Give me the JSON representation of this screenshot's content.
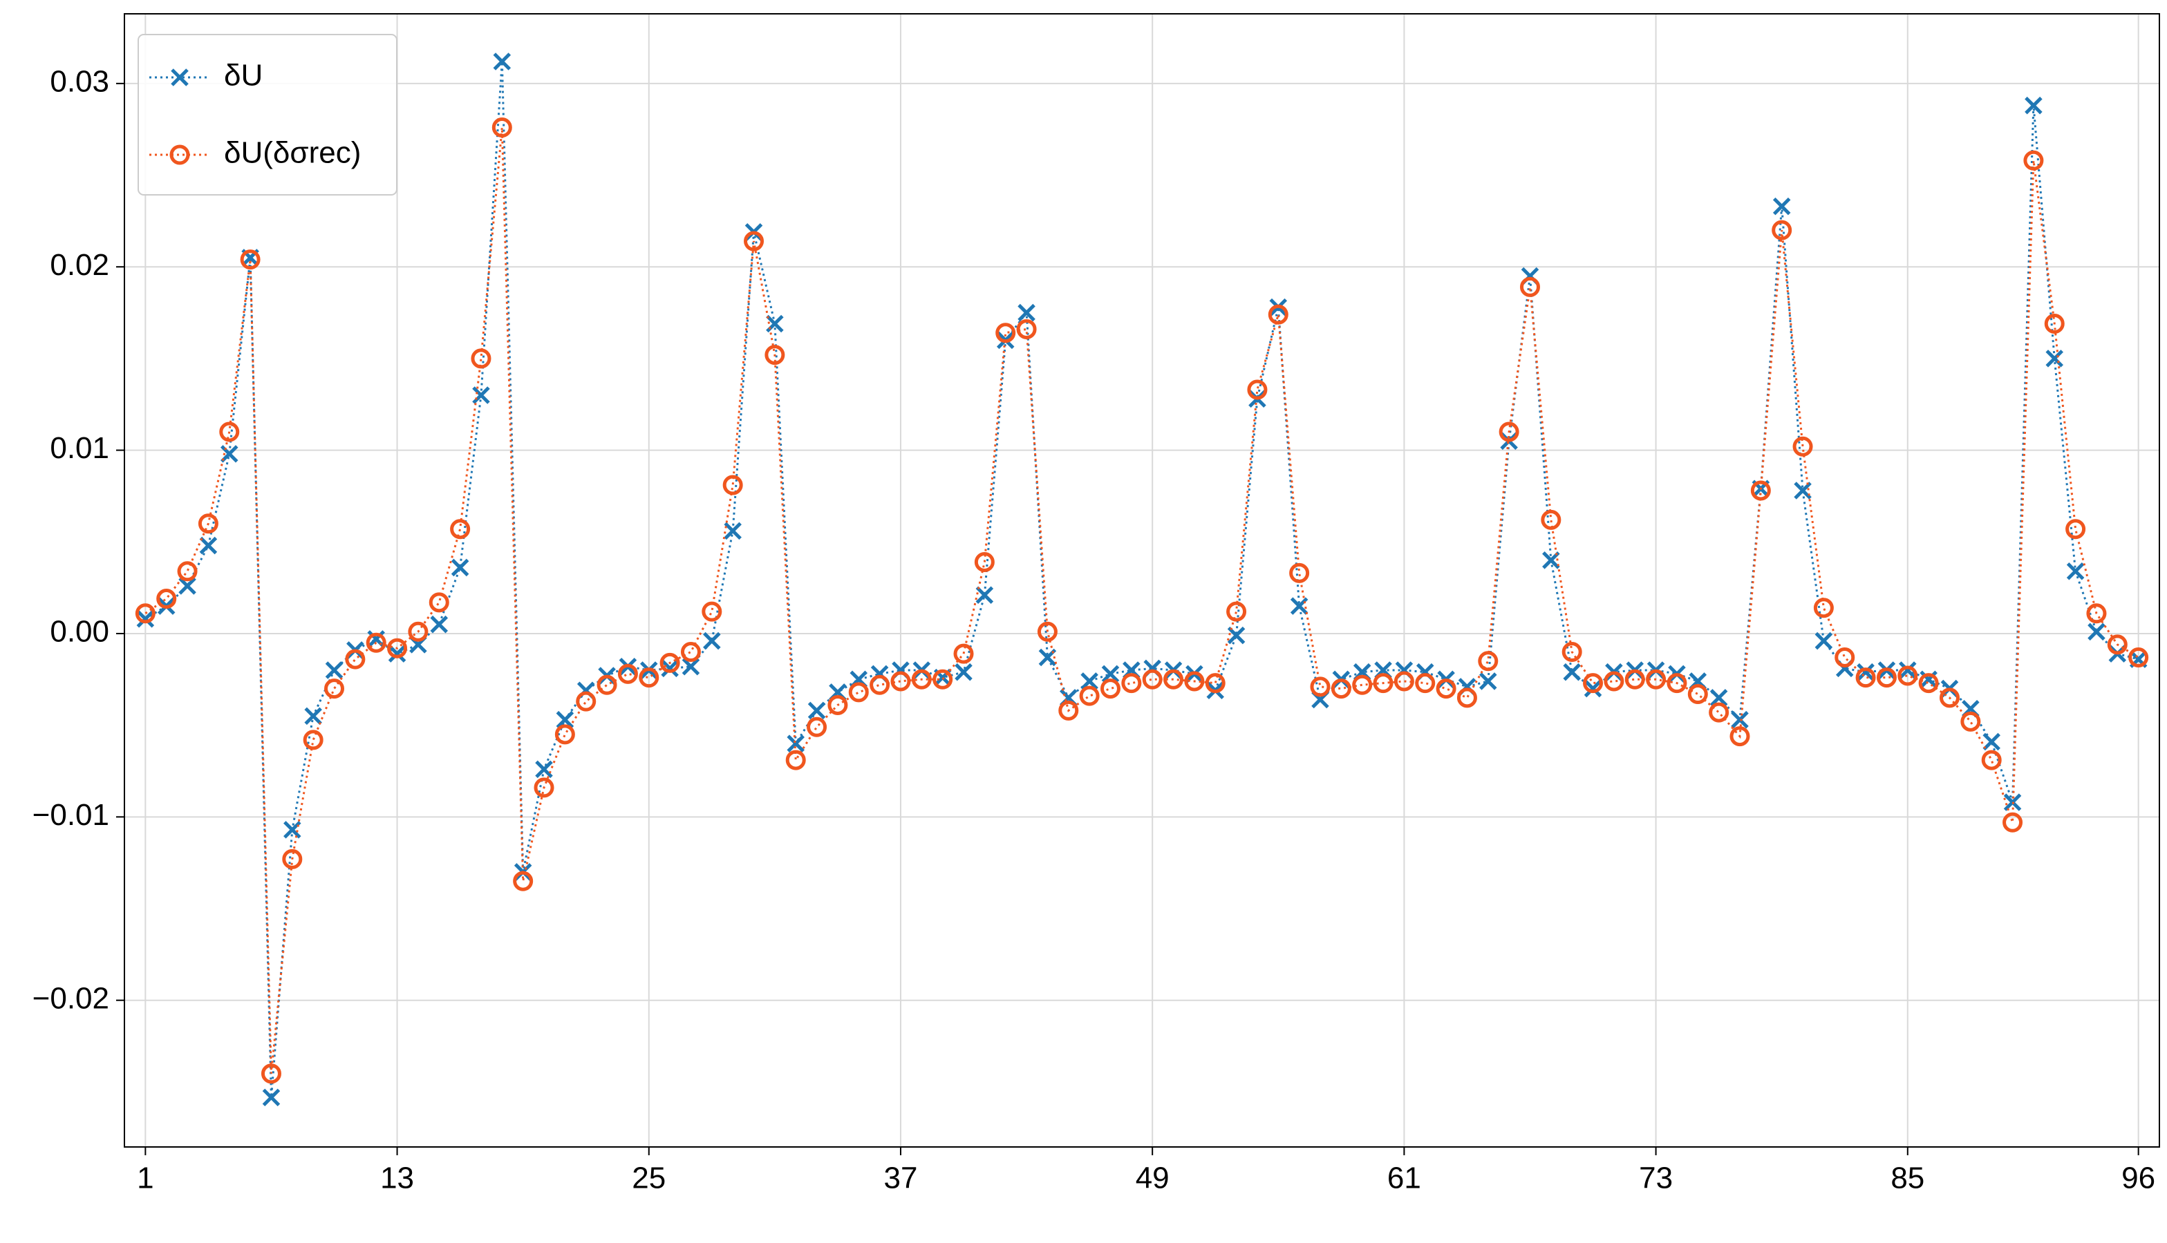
{
  "chart_data": {
    "type": "line",
    "x": [
      1,
      2,
      3,
      4,
      5,
      6,
      7,
      8,
      9,
      10,
      11,
      12,
      13,
      14,
      15,
      16,
      17,
      18,
      19,
      20,
      21,
      22,
      23,
      24,
      25,
      26,
      27,
      28,
      29,
      30,
      31,
      32,
      33,
      34,
      35,
      36,
      37,
      38,
      39,
      40,
      41,
      42,
      43,
      44,
      45,
      46,
      47,
      48,
      49,
      50,
      51,
      52,
      53,
      54,
      55,
      56,
      57,
      58,
      59,
      60,
      61,
      62,
      63,
      64,
      65,
      66,
      67,
      68,
      69,
      70,
      71,
      72,
      73,
      74,
      75,
      76,
      77,
      78,
      79,
      80,
      81,
      82,
      83,
      84,
      85,
      86,
      87,
      88,
      89,
      90,
      91,
      92,
      93,
      94,
      95,
      96
    ],
    "series": [
      {
        "name": "δU",
        "color": "#1f77b4",
        "marker": "x",
        "values": [
          0.0008,
          0.0015,
          0.0026,
          0.0048,
          0.0098,
          0.0205,
          -0.0253,
          -0.0107,
          -0.0045,
          -0.002,
          -0.0009,
          -0.0003,
          -0.0011,
          -0.0006,
          0.0005,
          0.0036,
          0.013,
          0.0312,
          -0.013,
          -0.0074,
          -0.0047,
          -0.0031,
          -0.0023,
          -0.0018,
          -0.002,
          -0.0019,
          -0.0018,
          -0.0004,
          0.0056,
          0.0219,
          0.0169,
          -0.006,
          -0.0042,
          -0.0032,
          -0.0025,
          -0.0022,
          -0.002,
          -0.002,
          -0.0024,
          -0.0021,
          0.0021,
          0.016,
          0.0175,
          -0.0013,
          -0.0035,
          -0.0026,
          -0.0022,
          -0.002,
          -0.0019,
          -0.002,
          -0.0022,
          -0.0031,
          -0.0001,
          0.0128,
          0.0178,
          0.0015,
          -0.0036,
          -0.0025,
          -0.0021,
          -0.002,
          -0.002,
          -0.0021,
          -0.0025,
          -0.0029,
          -0.0026,
          0.0105,
          0.0195,
          0.004,
          -0.0021,
          -0.003,
          -0.0021,
          -0.002,
          -0.002,
          -0.0022,
          -0.0026,
          -0.0035,
          -0.0047,
          0.0079,
          0.0233,
          0.0078,
          -0.0004,
          -0.0019,
          -0.0021,
          -0.002,
          -0.002,
          -0.0025,
          -0.003,
          -0.0041,
          -0.0059,
          -0.0092,
          0.0288,
          0.015,
          0.0034,
          0.0001,
          -0.0011,
          -0.0014
        ]
      },
      {
        "name": "δU(δσrec)",
        "color": "#f0561e",
        "marker": "o",
        "values": [
          0.0011,
          0.0019,
          0.0034,
          0.006,
          0.011,
          0.0204,
          -0.024,
          -0.0123,
          -0.0058,
          -0.003,
          -0.0014,
          -0.0005,
          -0.0008,
          0.0001,
          0.0017,
          0.0057,
          0.015,
          0.0276,
          -0.0135,
          -0.0084,
          -0.0055,
          -0.0037,
          -0.0028,
          -0.0022,
          -0.0024,
          -0.0016,
          -0.001,
          0.0012,
          0.0081,
          0.0214,
          0.0152,
          -0.0069,
          -0.0051,
          -0.0039,
          -0.0032,
          -0.0028,
          -0.0026,
          -0.0025,
          -0.0025,
          -0.0011,
          0.0039,
          0.0164,
          0.0166,
          0.0001,
          -0.0042,
          -0.0034,
          -0.003,
          -0.0027,
          -0.0025,
          -0.0025,
          -0.0026,
          -0.0027,
          0.0012,
          0.0133,
          0.0174,
          0.0033,
          -0.0029,
          -0.003,
          -0.0028,
          -0.0027,
          -0.0026,
          -0.0027,
          -0.003,
          -0.0035,
          -0.0015,
          0.011,
          0.0189,
          0.0062,
          -0.001,
          -0.0027,
          -0.0026,
          -0.0025,
          -0.0025,
          -0.0027,
          -0.0033,
          -0.0043,
          -0.0056,
          0.0078,
          0.022,
          0.0102,
          0.0014,
          -0.0013,
          -0.0024,
          -0.0024,
          -0.0023,
          -0.0027,
          -0.0035,
          -0.0048,
          -0.0069,
          -0.0103,
          0.0258,
          0.0169,
          0.0057,
          0.0011,
          -0.0006,
          -0.0013
        ]
      }
    ],
    "xlim": [
      0,
      97
    ],
    "xticks": [
      1,
      13,
      25,
      37,
      49,
      61,
      73,
      85,
      96
    ],
    "ylim": [
      -0.028,
      0.0338
    ],
    "yticks": [
      {
        "value": -0.02,
        "label": "−0.02"
      },
      {
        "value": -0.01,
        "label": "−0.01"
      },
      {
        "value": 0,
        "label": "0.00"
      },
      0.01,
      0.02,
      0.03
    ],
    "grid": true,
    "legend": "upper left"
  }
}
